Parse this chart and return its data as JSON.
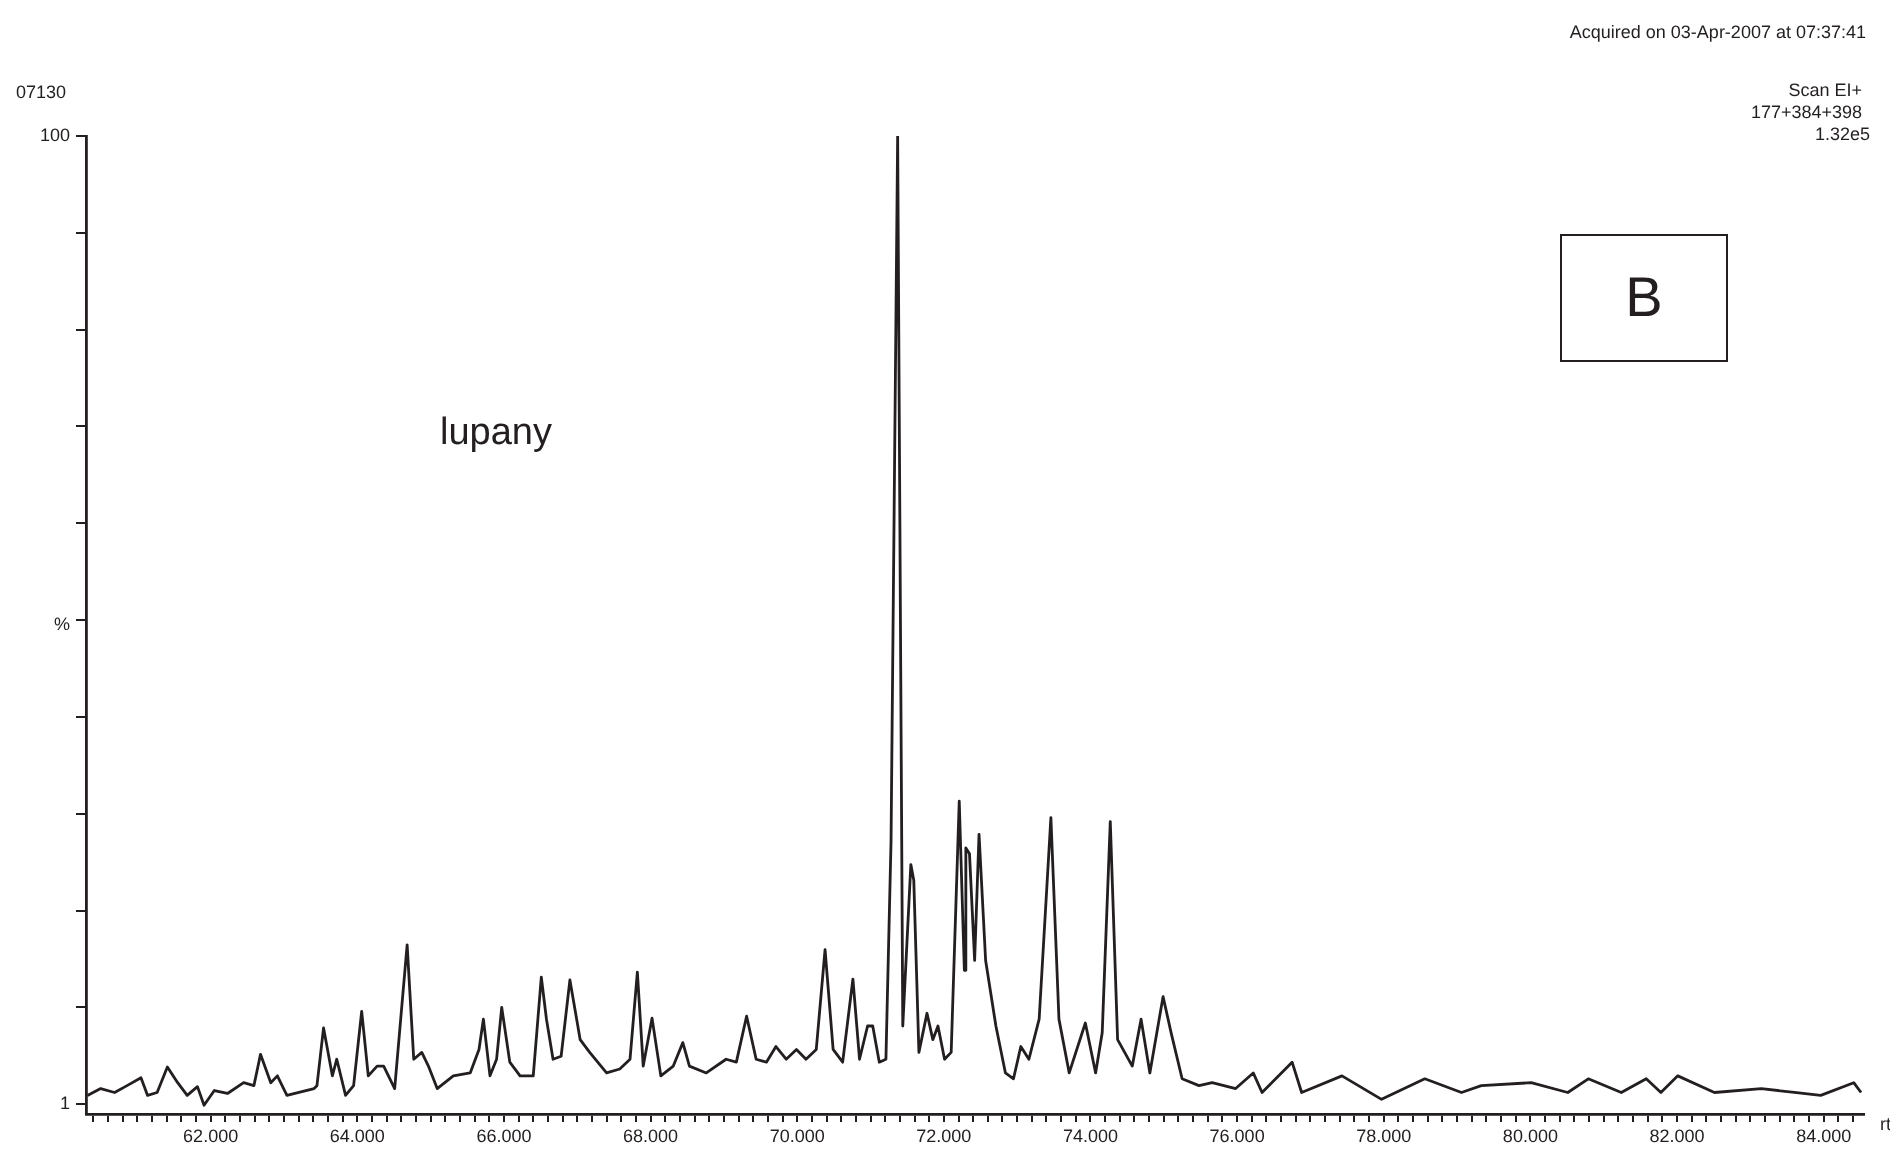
{
  "chart_data": {
    "type": "line",
    "xlabel": "rt",
    "ylabel": "%",
    "annotations": [
      "07130",
      "Acquired on 03-Apr-2007 at 07:37:41",
      "Scan EI+",
      "177+384+398",
      "1.32e5",
      "lupany",
      "B"
    ],
    "series": [
      {
        "color": "#231f20",
        "x": [
          60.32,
          60.5,
          60.69,
          60.86,
          61.05,
          61.14,
          61.27,
          61.41,
          61.55,
          61.68,
          61.82,
          61.91,
          62.05,
          62.23,
          62.45,
          62.59,
          62.68,
          62.82,
          62.91,
          63.04,
          63.41,
          63.45,
          63.54,
          63.66,
          63.72,
          63.84,
          63.95,
          64.06,
          64.15,
          64.27,
          64.36,
          64.51,
          64.68,
          64.77,
          64.88,
          64.97,
          65.09,
          65.31,
          65.54,
          65.66,
          65.72,
          65.81,
          65.9,
          65.97,
          66.08,
          66.22,
          66.4,
          66.51,
          66.58,
          66.67,
          66.78,
          66.9,
          67.04,
          67.17,
          67.4,
          67.58,
          67.72,
          67.82,
          67.9,
          68.02,
          68.14,
          68.31,
          68.44,
          68.53,
          68.76,
          69.03,
          69.17,
          69.31,
          69.44,
          69.58,
          69.71,
          69.85,
          69.99,
          70.12,
          70.26,
          70.38,
          70.49,
          70.62,
          70.76,
          70.85,
          70.96,
          71.03,
          71.12,
          71.21,
          71.28,
          71.37,
          71.44,
          71.55,
          71.59,
          71.66,
          71.77,
          71.85,
          71.92,
          72.01,
          72.1,
          72.21,
          72.28,
          72.3,
          72.35,
          72.42,
          72.48,
          72.57,
          72.71,
          72.84,
          72.95,
          73.05,
          73.16,
          73.3,
          73.46,
          73.57,
          73.71,
          73.93,
          74.07,
          74.16,
          74.27,
          74.37,
          74.57,
          74.69,
          74.81,
          74.99,
          75.1,
          75.25,
          75.48,
          75.66,
          75.98,
          76.22,
          76.34,
          76.75,
          76.88,
          77.43,
          77.97,
          78.56,
          79.06,
          79.33,
          80.01,
          80.51,
          80.79,
          81.24,
          81.58,
          81.78,
          82.01,
          82.51,
          83.15,
          83.6,
          83.96,
          84.41,
          84.51
        ],
        "values": [
          1.9,
          2.6,
          2.2,
          2.9,
          3.7,
          1.9,
          2.2,
          4.8,
          3.2,
          1.9,
          2.8,
          0.9,
          2.4,
          2.1,
          3.2,
          2.9,
          6.1,
          3.2,
          3.9,
          1.9,
          2.6,
          2.9,
          8.8,
          3.9,
          5.6,
          1.9,
          2.9,
          10.5,
          3.9,
          4.9,
          4.9,
          2.6,
          17.3,
          5.6,
          6.3,
          4.9,
          2.6,
          3.9,
          4.2,
          6.6,
          9.7,
          3.9,
          5.6,
          10.9,
          5.3,
          3.9,
          3.9,
          14.0,
          9.7,
          5.6,
          5.9,
          13.7,
          7.6,
          6.3,
          4.2,
          4.6,
          5.6,
          14.5,
          4.9,
          9.8,
          3.9,
          4.9,
          7.3,
          4.9,
          4.2,
          5.6,
          5.3,
          10.0,
          5.6,
          5.3,
          6.9,
          5.6,
          6.6,
          5.6,
          6.6,
          16.8,
          6.6,
          5.3,
          13.8,
          5.6,
          9.0,
          9.0,
          5.3,
          5.6,
          27.9,
          100,
          9.0,
          25.5,
          23.9,
          6.3,
          10.3,
          7.6,
          9.0,
          5.6,
          6.3,
          32.0,
          14.7,
          27.2,
          26.6,
          15.7,
          28.6,
          15.7,
          9.0,
          4.2,
          3.6,
          6.9,
          5.6,
          9.7,
          30.3,
          9.7,
          4.2,
          9.3,
          4.2,
          8.3,
          29.9,
          7.6,
          4.9,
          9.7,
          4.2,
          12.0,
          8.3,
          3.6,
          2.9,
          3.2,
          2.6,
          4.2,
          2.2,
          5.3,
          2.2,
          3.9,
          1.5,
          3.6,
          2.2,
          2.9,
          3.2,
          2.2,
          3.6,
          2.2,
          3.6,
          2.2,
          3.9,
          2.2,
          2.6,
          2.2,
          1.9,
          3.2,
          2.2
        ]
      }
    ],
    "xlim": [
      60.3,
      84.55
    ],
    "xticks": [
      {
        "value": 60.4,
        "label": null
      },
      {
        "value": 60.6,
        "label": null
      },
      {
        "value": 60.8,
        "label": null
      },
      {
        "value": 61,
        "label": null
      },
      {
        "value": 61.2,
        "label": null
      },
      {
        "value": 61.4,
        "label": null
      },
      {
        "value": 61.6,
        "label": null
      },
      {
        "value": 61.8,
        "label": null
      },
      {
        "value": 62,
        "label": "62.000"
      },
      {
        "value": 62.2,
        "label": null
      },
      {
        "value": 62.4,
        "label": null
      },
      {
        "value": 62.6,
        "label": null
      },
      {
        "value": 62.8,
        "label": null
      },
      {
        "value": 63,
        "label": null
      },
      {
        "value": 63.2,
        "label": null
      },
      {
        "value": 63.4,
        "label": null
      },
      {
        "value": 63.6,
        "label": null
      },
      {
        "value": 63.8,
        "label": null
      },
      {
        "value": 64,
        "label": "64.000"
      },
      {
        "value": 64.2,
        "label": null
      },
      {
        "value": 64.4,
        "label": null
      },
      {
        "value": 64.6,
        "label": null
      },
      {
        "value": 64.8,
        "label": null
      },
      {
        "value": 65,
        "label": null
      },
      {
        "value": 65.2,
        "label": null
      },
      {
        "value": 65.4,
        "label": null
      },
      {
        "value": 65.6,
        "label": null
      },
      {
        "value": 65.8,
        "label": null
      },
      {
        "value": 66,
        "label": "66.000"
      },
      {
        "value": 66.2,
        "label": null
      },
      {
        "value": 66.4,
        "label": null
      },
      {
        "value": 66.6,
        "label": null
      },
      {
        "value": 66.8,
        "label": null
      },
      {
        "value": 67,
        "label": null
      },
      {
        "value": 67.2,
        "label": null
      },
      {
        "value": 67.4,
        "label": null
      },
      {
        "value": 67.6,
        "label": null
      },
      {
        "value": 67.8,
        "label": null
      },
      {
        "value": 68,
        "label": "68.000"
      },
      {
        "value": 68.2,
        "label": null
      },
      {
        "value": 68.4,
        "label": null
      },
      {
        "value": 68.6,
        "label": null
      },
      {
        "value": 68.8,
        "label": null
      },
      {
        "value": 69,
        "label": null
      },
      {
        "value": 69.2,
        "label": null
      },
      {
        "value": 69.4,
        "label": null
      },
      {
        "value": 69.6,
        "label": null
      },
      {
        "value": 69.8,
        "label": null
      },
      {
        "value": 70,
        "label": "70.000"
      },
      {
        "value": 70.2,
        "label": null
      },
      {
        "value": 70.4,
        "label": null
      },
      {
        "value": 70.6,
        "label": null
      },
      {
        "value": 70.8,
        "label": null
      },
      {
        "value": 71,
        "label": null
      },
      {
        "value": 71.2,
        "label": null
      },
      {
        "value": 71.4,
        "label": null
      },
      {
        "value": 71.6,
        "label": null
      },
      {
        "value": 71.8,
        "label": null
      },
      {
        "value": 72,
        "label": "72.000"
      },
      {
        "value": 72.2,
        "label": null
      },
      {
        "value": 72.4,
        "label": null
      },
      {
        "value": 72.6,
        "label": null
      },
      {
        "value": 72.8,
        "label": null
      },
      {
        "value": 73,
        "label": null
      },
      {
        "value": 73.2,
        "label": null
      },
      {
        "value": 73.4,
        "label": null
      },
      {
        "value": 73.6,
        "label": null
      },
      {
        "value": 73.8,
        "label": null
      },
      {
        "value": 74,
        "label": "74.000"
      },
      {
        "value": 74.2,
        "label": null
      },
      {
        "value": 74.4,
        "label": null
      },
      {
        "value": 74.6,
        "label": null
      },
      {
        "value": 74.8,
        "label": null
      },
      {
        "value": 75,
        "label": null
      },
      {
        "value": 75.2,
        "label": null
      },
      {
        "value": 75.4,
        "label": null
      },
      {
        "value": 75.6,
        "label": null
      },
      {
        "value": 75.8,
        "label": null
      },
      {
        "value": 76,
        "label": "76.000"
      },
      {
        "value": 76.2,
        "label": null
      },
      {
        "value": 76.4,
        "label": null
      },
      {
        "value": 76.6,
        "label": null
      },
      {
        "value": 76.8,
        "label": null
      },
      {
        "value": 77,
        "label": null
      },
      {
        "value": 77.2,
        "label": null
      },
      {
        "value": 77.4,
        "label": null
      },
      {
        "value": 77.6,
        "label": null
      },
      {
        "value": 77.8,
        "label": null
      },
      {
        "value": 78,
        "label": "78.000"
      },
      {
        "value": 78.2,
        "label": null
      },
      {
        "value": 78.4,
        "label": null
      },
      {
        "value": 78.6,
        "label": null
      },
      {
        "value": 78.8,
        "label": null
      },
      {
        "value": 79,
        "label": null
      },
      {
        "value": 79.2,
        "label": null
      },
      {
        "value": 79.4,
        "label": null
      },
      {
        "value": 79.6,
        "label": null
      },
      {
        "value": 79.8,
        "label": null
      },
      {
        "value": 80,
        "label": "80.000"
      },
      {
        "value": 80.2,
        "label": null
      },
      {
        "value": 80.4,
        "label": null
      },
      {
        "value": 80.6,
        "label": null
      },
      {
        "value": 80.8,
        "label": null
      },
      {
        "value": 81,
        "label": null
      },
      {
        "value": 81.2,
        "label": null
      },
      {
        "value": 81.4,
        "label": null
      },
      {
        "value": 81.6,
        "label": null
      },
      {
        "value": 81.8,
        "label": null
      },
      {
        "value": 82,
        "label": "82.000"
      },
      {
        "value": 82.2,
        "label": null
      },
      {
        "value": 82.4,
        "label": null
      },
      {
        "value": 82.6,
        "label": null
      },
      {
        "value": 82.8,
        "label": null
      },
      {
        "value": 83,
        "label": null
      },
      {
        "value": 83.2,
        "label": null
      },
      {
        "value": 83.4,
        "label": null
      },
      {
        "value": 83.6,
        "label": null
      },
      {
        "value": 83.8,
        "label": null
      },
      {
        "value": 84,
        "label": "84.000"
      },
      {
        "value": 84.2,
        "label": null
      },
      {
        "value": 84.4,
        "label": null
      }
    ],
    "ylim": [
      0,
      100
    ],
    "yticks": [
      1,
      {
        "value": 10.9,
        "label": null
      },
      {
        "value": 20.8,
        "label": null
      },
      {
        "value": 30.7,
        "label": null
      },
      {
        "value": 40.6,
        "label": null
      },
      {
        "value": 50.5,
        "label": null
      },
      {
        "value": 60.4,
        "label": null
      },
      {
        "value": 70.3,
        "label": null
      },
      {
        "value": 80.2,
        "label": null
      },
      {
        "value": 90.1,
        "label": null
      },
      100
    ],
    "grid": false,
    "legend": false,
    "marker": "none",
    "line_style": "solid"
  }
}
